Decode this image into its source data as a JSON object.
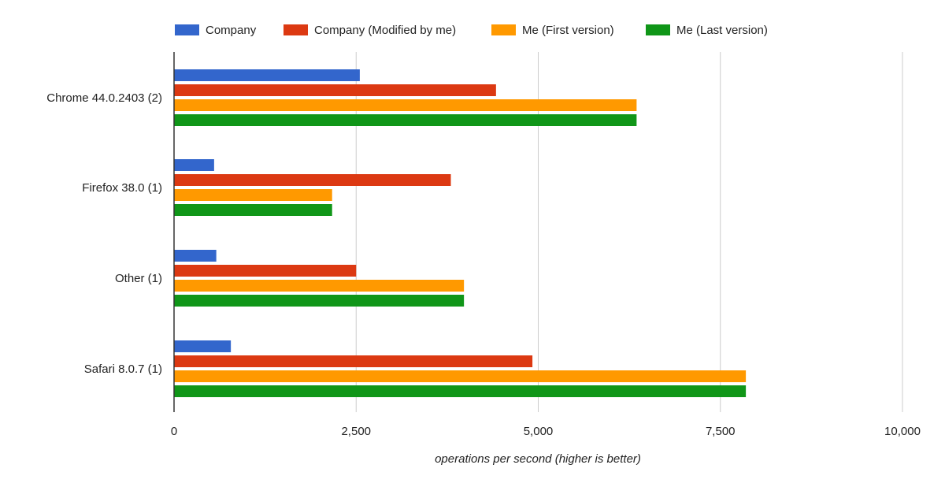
{
  "chart_data": {
    "type": "bar",
    "orientation": "horizontal",
    "categories": [
      "Chrome 44.0.2403 (2)",
      "Firefox 38.0 (1)",
      "Other (1)",
      "Safari 8.0.7 (1)"
    ],
    "series": [
      {
        "name": "Company",
        "color": "#3366cc",
        "values": [
          2550,
          550,
          580,
          780
        ]
      },
      {
        "name": "Company (Modified by me)",
        "color": "#dc3912",
        "values": [
          4420,
          3800,
          2500,
          4920
        ]
      },
      {
        "name": "Me (First version)",
        "color": "#ff9900",
        "values": [
          6350,
          2170,
          3980,
          7850
        ]
      },
      {
        "name": "Me (Last version)",
        "color": "#109618",
        "values": [
          6350,
          2170,
          3980,
          7850
        ]
      }
    ],
    "xlim": [
      0,
      10000
    ],
    "xticks": [
      0,
      2500,
      5000,
      7500,
      10000
    ],
    "xtick_labels": [
      "0",
      "2,500",
      "5,000",
      "7,500",
      "10,000"
    ],
    "xlabel": "operations per second (higher is better)",
    "ylabel": "",
    "legend_position": "top",
    "grid": true
  }
}
